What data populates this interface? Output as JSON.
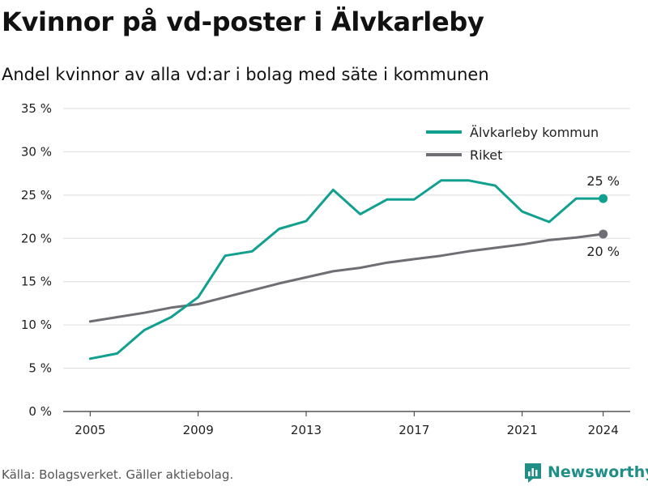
{
  "title": "Kvinnor på vd-poster i Älvkarleby",
  "subtitle": "Andel kvinnor av alla vd:ar i bolag med säte i kommunen",
  "source": "Källa: Bolagsverket. Gäller aktiebolag.",
  "brand": "Newsworthy",
  "colors": {
    "primary": "#11a08f",
    "secondary": "#6e6e74",
    "grid": "#dcdcdc",
    "brand": "#1e8e86"
  },
  "chart_data": {
    "type": "line",
    "x": [
      2005,
      2006,
      2007,
      2008,
      2009,
      2010,
      2011,
      2012,
      2013,
      2014,
      2015,
      2016,
      2017,
      2018,
      2019,
      2020,
      2021,
      2022,
      2023,
      2024
    ],
    "series": [
      {
        "name": "Älvkarleby kommun",
        "color": "#11a08f",
        "values": [
          6.1,
          6.7,
          9.4,
          10.9,
          13.2,
          18.0,
          18.5,
          21.1,
          22.0,
          25.6,
          22.8,
          24.5,
          24.5,
          26.7,
          26.7,
          26.1,
          23.1,
          21.9,
          24.6,
          24.6
        ],
        "end_label": "25 %"
      },
      {
        "name": "Riket",
        "color": "#6e6e74",
        "values": [
          10.4,
          10.9,
          11.4,
          12.0,
          12.4,
          13.2,
          14.0,
          14.8,
          15.5,
          16.2,
          16.6,
          17.2,
          17.6,
          18.0,
          18.5,
          18.9,
          19.3,
          19.8,
          20.1,
          20.5
        ],
        "end_label": "20 %"
      }
    ],
    "y_ticks": [
      "0 %",
      "5 %",
      "10 %",
      "15 %",
      "20 %",
      "25 %",
      "30 %",
      "35 %"
    ],
    "x_ticks": [
      "2005",
      "2009",
      "2013",
      "2017",
      "2021",
      "2024"
    ],
    "xlim": [
      2004,
      2025
    ],
    "ylim": [
      0,
      35
    ],
    "grid": true,
    "legend_position": "top-right"
  }
}
